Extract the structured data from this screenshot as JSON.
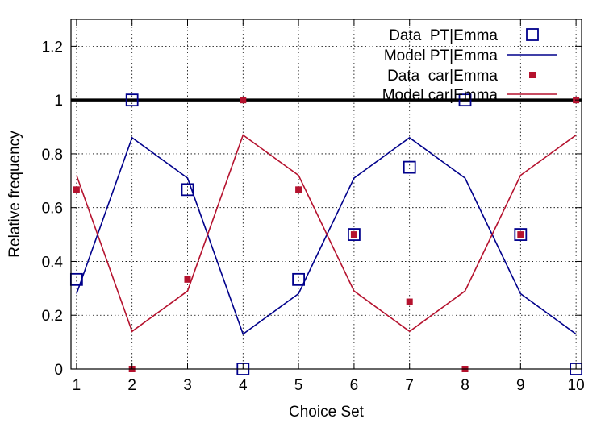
{
  "chart_data": {
    "type": "line",
    "title": "",
    "xlabel": "Choice Set",
    "ylabel": "Relative frequency",
    "xlim": [
      0.9,
      10.1
    ],
    "ylim": [
      0,
      1.3
    ],
    "xticks": [
      1,
      2,
      3,
      4,
      5,
      6,
      7,
      8,
      9,
      10
    ],
    "yticks": [
      "0",
      "0.2",
      "0.4",
      "0.6",
      "0.8",
      "1",
      "1.2"
    ],
    "grid": true,
    "legend_position": "top-right",
    "reference_line": {
      "y": 1
    },
    "series": [
      {
        "name": "Data  PT|Emma",
        "style": "open-square",
        "color": "#00008b",
        "x": [
          1,
          2,
          3,
          4,
          5,
          6,
          7,
          8,
          9,
          10
        ],
        "y": [
          0.333,
          1.0,
          0.667,
          0.0,
          0.333,
          0.5,
          0.75,
          1.0,
          0.5,
          0.0
        ]
      },
      {
        "name": "Model PT|Emma",
        "style": "line",
        "color": "#00008b",
        "x": [
          1,
          2,
          3,
          4,
          5,
          6,
          7,
          8,
          9,
          10
        ],
        "y": [
          0.28,
          0.86,
          0.71,
          0.13,
          0.28,
          0.71,
          0.86,
          0.71,
          0.28,
          0.13
        ]
      },
      {
        "name": "Data  car|Emma",
        "style": "filled-square",
        "color": "#b5122e",
        "x": [
          1,
          2,
          3,
          4,
          5,
          6,
          7,
          8,
          9,
          10
        ],
        "y": [
          0.667,
          0.0,
          0.333,
          1.0,
          0.667,
          0.5,
          0.25,
          0.0,
          0.5,
          1.0
        ]
      },
      {
        "name": "Model car|Emma",
        "style": "line",
        "color": "#b5122e",
        "x": [
          1,
          2,
          3,
          4,
          5,
          6,
          7,
          8,
          9,
          10
        ],
        "y": [
          0.72,
          0.14,
          0.29,
          0.87,
          0.72,
          0.29,
          0.14,
          0.29,
          0.72,
          0.87
        ]
      }
    ]
  }
}
